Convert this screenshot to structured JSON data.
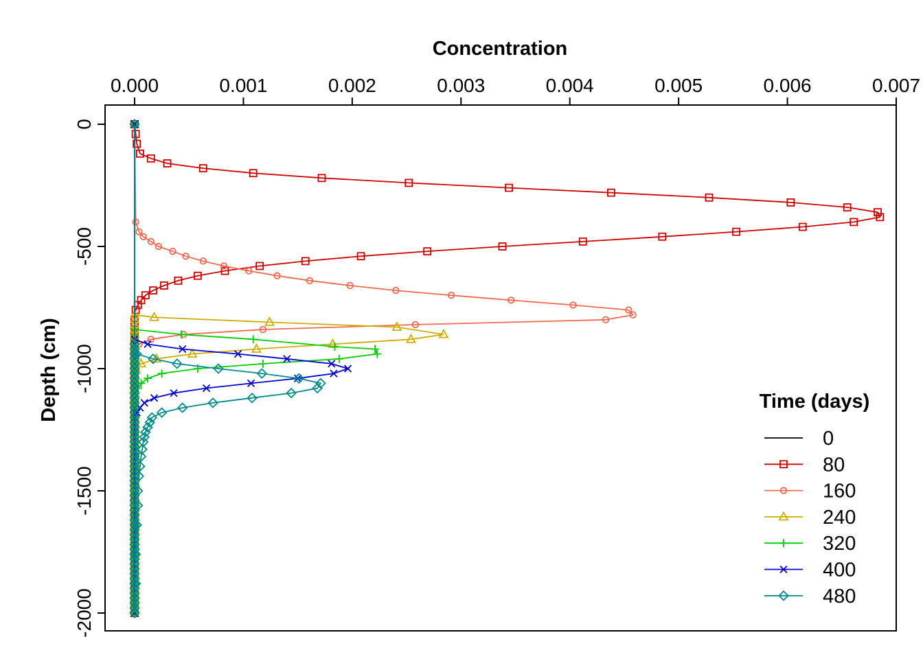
{
  "chart_data": {
    "type": "line",
    "title": "",
    "xlabel": "Concentration",
    "ylabel": "Depth (cm)",
    "xlim": [
      0,
      0.007
    ],
    "ylim": [
      -2000,
      0
    ],
    "x_ticks": [
      "0.000",
      "0.001",
      "0.002",
      "0.003",
      "0.004",
      "0.005",
      "0.006",
      "0.007"
    ],
    "y_ticks": [
      "0",
      "-500",
      "-1000",
      "-1500",
      "-2000"
    ],
    "x_axis_position": "top",
    "y_axis_reversed": false,
    "grid": false,
    "legend": {
      "title": "Time (days)",
      "placement": "bottom-right"
    },
    "series": [
      {
        "name": "0",
        "color": "#000000",
        "marker": "none",
        "points": [
          [
            0,
            0
          ],
          [
            0,
            -2000
          ]
        ]
      },
      {
        "name": "80",
        "color": "#CD0000",
        "marker": "square",
        "points": [
          [
            0,
            0
          ],
          [
            1e-05,
            -40
          ],
          [
            2e-05,
            -80
          ],
          [
            5e-05,
            -120
          ],
          [
            0.00015,
            -140
          ],
          [
            0.0003,
            -160
          ],
          [
            0.00063,
            -180
          ],
          [
            0.00109,
            -200
          ],
          [
            0.00172,
            -220
          ],
          [
            0.00252,
            -240
          ],
          [
            0.00344,
            -260
          ],
          [
            0.00438,
            -280
          ],
          [
            0.00528,
            -300
          ],
          [
            0.00603,
            -320
          ],
          [
            0.00655,
            -340
          ],
          [
            0.00683,
            -360
          ],
          [
            0.00685,
            -380
          ],
          [
            0.00661,
            -400
          ],
          [
            0.00614,
            -420
          ],
          [
            0.00553,
            -440
          ],
          [
            0.00485,
            -460
          ],
          [
            0.00412,
            -480
          ],
          [
            0.00338,
            -500
          ],
          [
            0.00269,
            -520
          ],
          [
            0.00208,
            -540
          ],
          [
            0.00157,
            -560
          ],
          [
            0.00115,
            -580
          ],
          [
            0.00083,
            -600
          ],
          [
            0.00058,
            -620
          ],
          [
            0.0004,
            -640
          ],
          [
            0.00027,
            -660
          ],
          [
            0.00017,
            -680
          ],
          [
            0.0001,
            -700
          ],
          [
            6e-05,
            -720
          ],
          [
            3e-05,
            -740
          ],
          [
            1e-05,
            -760
          ],
          [
            0,
            -800
          ],
          [
            0,
            -2000
          ]
        ]
      },
      {
        "name": "160",
        "color": "#EE6A50",
        "marker": "circle",
        "points": [
          [
            0,
            0
          ],
          [
            1e-05,
            -400
          ],
          [
            4e-05,
            -440
          ],
          [
            8e-05,
            -460
          ],
          [
            0.00015,
            -480
          ],
          [
            0.00022,
            -500
          ],
          [
            0.00035,
            -520
          ],
          [
            0.00047,
            -540
          ],
          [
            0.00063,
            -560
          ],
          [
            0.00082,
            -580
          ],
          [
            0.00105,
            -600
          ],
          [
            0.00131,
            -620
          ],
          [
            0.00161,
            -640
          ],
          [
            0.00198,
            -660
          ],
          [
            0.0024,
            -680
          ],
          [
            0.00291,
            -700
          ],
          [
            0.00346,
            -720
          ],
          [
            0.00403,
            -740
          ],
          [
            0.00454,
            -760
          ],
          [
            0.00458,
            -780
          ],
          [
            0.00433,
            -800
          ],
          [
            0.00258,
            -820
          ],
          [
            0.00118,
            -840
          ],
          [
            0.00045,
            -860
          ],
          [
            0.00015,
            -880
          ],
          [
            4e-05,
            -900
          ],
          [
            1e-05,
            -920
          ],
          [
            0,
            -960
          ],
          [
            0,
            -2000
          ]
        ]
      },
      {
        "name": "240",
        "color": "#CDAD00",
        "marker": "triangle",
        "points": [
          [
            0,
            0
          ],
          [
            0,
            -780
          ],
          [
            0.00018,
            -790
          ],
          [
            0.00124,
            -810
          ],
          [
            0.00241,
            -830
          ],
          [
            0.00284,
            -860
          ],
          [
            0.00254,
            -880
          ],
          [
            0.00182,
            -900
          ],
          [
            0.00112,
            -920
          ],
          [
            0.00053,
            -940
          ],
          [
            0.0002,
            -960
          ],
          [
            6e-05,
            -980
          ],
          [
            1e-05,
            -1000
          ],
          [
            0,
            -1040
          ],
          [
            0,
            -2000
          ]
        ]
      },
      {
        "name": "320",
        "color": "#00CD00",
        "marker": "plus",
        "points": [
          [
            0,
            0
          ],
          [
            0,
            -840
          ],
          [
            0.00043,
            -860
          ],
          [
            0.00109,
            -880
          ],
          [
            0.00184,
            -910
          ],
          [
            0.00221,
            -920
          ],
          [
            0.00223,
            -940
          ],
          [
            0.00188,
            -960
          ],
          [
            0.00118,
            -980
          ],
          [
            0.00058,
            -1000
          ],
          [
            0.00025,
            -1020
          ],
          [
            0.00012,
            -1040
          ],
          [
            6e-05,
            -1060
          ],
          [
            3e-05,
            -1080
          ],
          [
            1e-05,
            -1100
          ],
          [
            0,
            -1140
          ],
          [
            0,
            -2000
          ]
        ]
      },
      {
        "name": "400",
        "color": "#0000CD",
        "marker": "x",
        "points": [
          [
            0,
            0
          ],
          [
            0,
            -880
          ],
          [
            0.00012,
            -900
          ],
          [
            0.00044,
            -920
          ],
          [
            0.00095,
            -940
          ],
          [
            0.0014,
            -960
          ],
          [
            0.00181,
            -980
          ],
          [
            0.00196,
            -1000
          ],
          [
            0.00183,
            -1020
          ],
          [
            0.0015,
            -1040
          ],
          [
            0.00107,
            -1060
          ],
          [
            0.00066,
            -1080
          ],
          [
            0.00036,
            -1100
          ],
          [
            0.00018,
            -1120
          ],
          [
            9e-05,
            -1140
          ],
          [
            5e-05,
            -1160
          ],
          [
            2e-05,
            -1180
          ],
          [
            0,
            -1200
          ],
          [
            0,
            -2000
          ]
        ]
      },
      {
        "name": "480",
        "color": "#008B8B",
        "marker": "diamond",
        "points": [
          [
            0,
            0
          ],
          [
            0,
            -900
          ],
          [
            2e-05,
            -940
          ],
          [
            0.00017,
            -960
          ],
          [
            0.00039,
            -980
          ],
          [
            0.00077,
            -1000
          ],
          [
            0.00117,
            -1020
          ],
          [
            0.00151,
            -1040
          ],
          [
            0.00171,
            -1060
          ],
          [
            0.00168,
            -1080
          ],
          [
            0.00144,
            -1100
          ],
          [
            0.00108,
            -1120
          ],
          [
            0.00072,
            -1140
          ],
          [
            0.00044,
            -1160
          ],
          [
            0.00025,
            -1180
          ],
          [
            0.00016,
            -1200
          ],
          [
            0.00014,
            -1220
          ],
          [
            0.00012,
            -1240
          ],
          [
            0.0001,
            -1260
          ],
          [
            9e-05,
            -1280
          ],
          [
            8e-05,
            -1300
          ],
          [
            7e-05,
            -1330
          ],
          [
            6e-05,
            -1360
          ],
          [
            5e-05,
            -1400
          ],
          [
            4e-05,
            -1440
          ],
          [
            3e-05,
            -1500
          ],
          [
            3e-05,
            -1560
          ],
          [
            2e-05,
            -1640
          ],
          [
            1e-05,
            -1760
          ],
          [
            1e-05,
            -1880
          ],
          [
            0,
            -2000
          ]
        ]
      }
    ]
  }
}
